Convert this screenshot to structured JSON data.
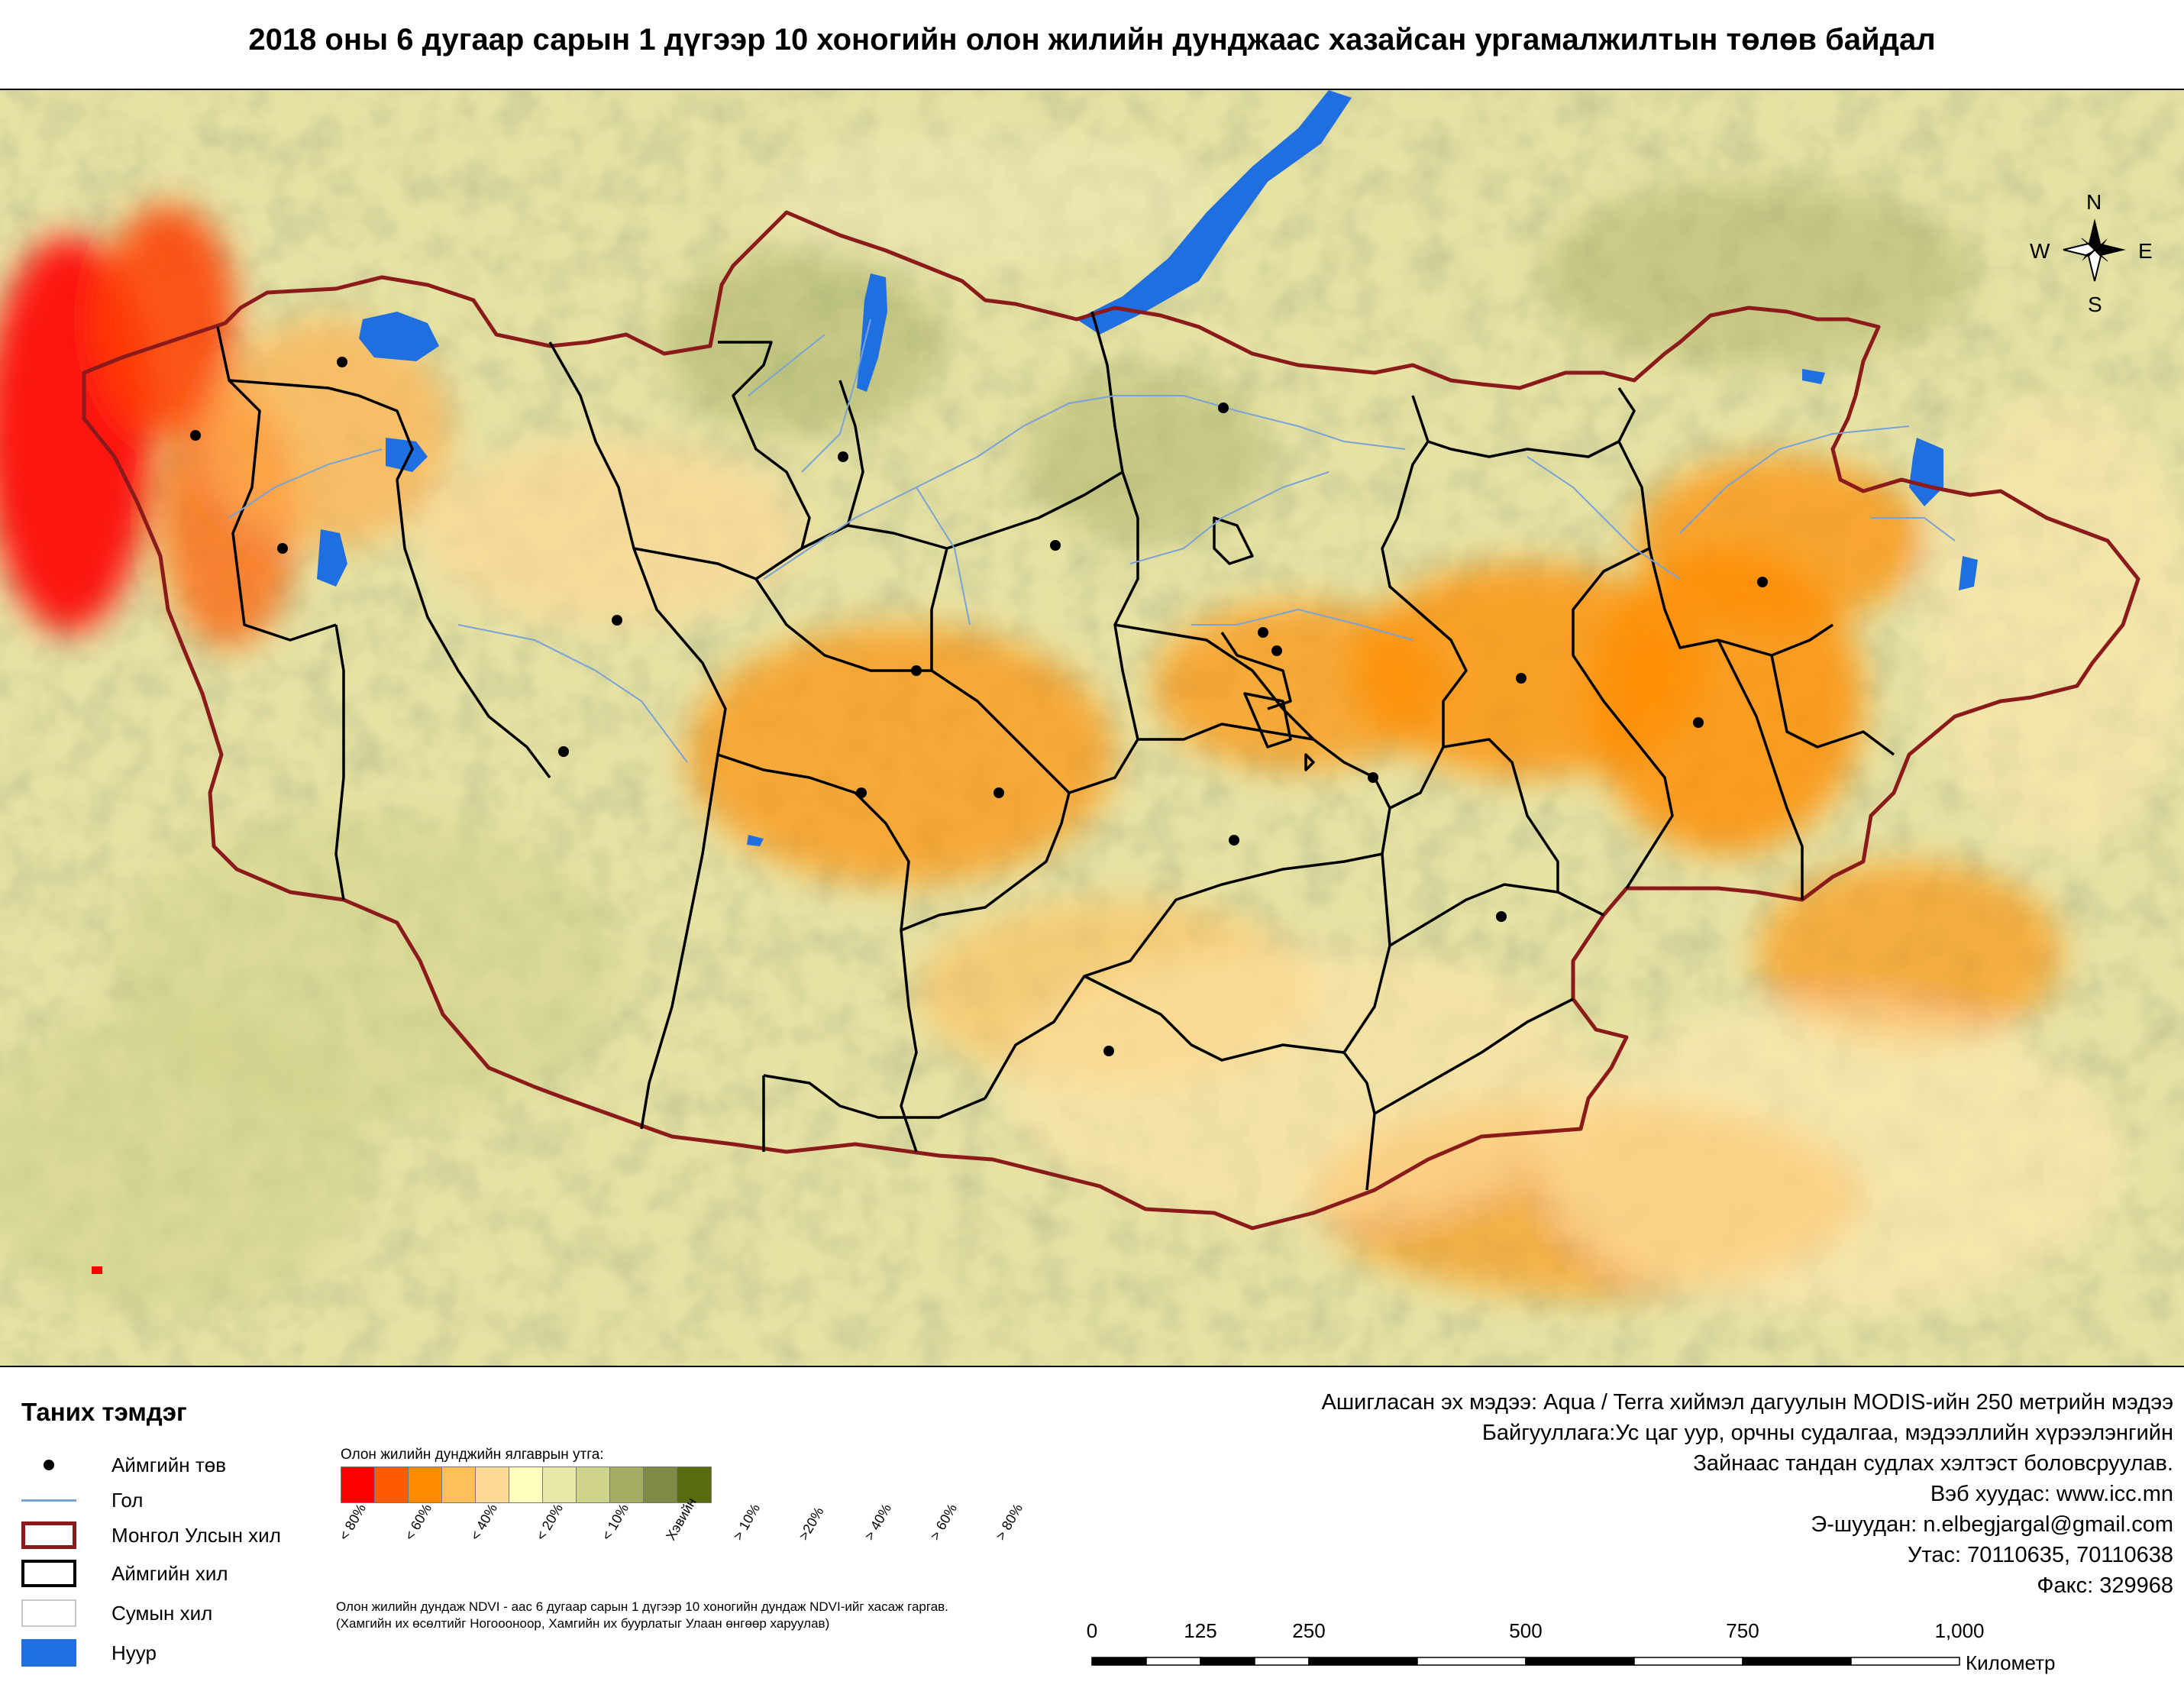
{
  "title": "2018 оны 6 дугаар сарын 1 дүгээр 10 хоногийн олон жилийн дунджаас хазайсан ургамалжилтын төлөв байдал",
  "compass": {
    "north": "N",
    "south": "S",
    "east": "E",
    "west": "W"
  },
  "legend": {
    "title": "Таних тэмдэг",
    "items": [
      {
        "label": "Аймгийн төв",
        "symbol": "dot"
      },
      {
        "label": "Гол",
        "symbol": "river"
      },
      {
        "label": "Монгол Улсын хил",
        "symbol": "country"
      },
      {
        "label": "Аймгийн хил",
        "symbol": "aimag"
      },
      {
        "label": "Сумын хил",
        "symbol": "sum"
      },
      {
        "label": "Нуур",
        "symbol": "lake"
      }
    ]
  },
  "color_scale": {
    "title": "Олон жилийн дунджийн ялгаврын утга:",
    "classes": [
      {
        "label": "< 80%",
        "color": "#ff0000"
      },
      {
        "label": "< 60%",
        "color": "#ff5a00"
      },
      {
        "label": "< 40%",
        "color": "#ff8c00"
      },
      {
        "label": "< 20%",
        "color": "#ffbf5a"
      },
      {
        "label": "< 10%",
        "color": "#ffd996"
      },
      {
        "label": "Хэвийн",
        "color": "#ffffbe"
      },
      {
        "label": "> 10%",
        "color": "#e8e8a8"
      },
      {
        "label": ">20%",
        "color": "#cfd28a"
      },
      {
        "label": "> 40%",
        "color": "#a6ad62"
      },
      {
        "label": "> 60%",
        "color": "#7f8a44"
      },
      {
        "label": "> 80%",
        "color": "#586b10"
      }
    ]
  },
  "notes": [
    "Олон жилийн дундаж NDVI - аас 6 дугаар сарын 1 дүгээр 10 хоногийн дундаж NDVI-ийг хасаж гаргав.",
    "(Хамгийн их өсөлтийг Ногоооноор,  Хамгийн их буурлатыг Улаан өнгөөр харуулав)"
  ],
  "info": [
    "Ашигласан эх мэдээ: Aqua / Terra хиймэл дагуулын MODIS-ийн 250 метрийн мэдээ",
    "Байгууллага:Ус цаг уур, орчны судалгаа, мэдээллийн хүрээлэнгийн",
    "Зайнаас тандан судлах хэлтэст боловсруулав.",
    "Вэб хуудас: www.icc.mn",
    "Э-шуудан: n.elbegjargal@gmail.com",
    "Утас: 70110635, 70110638",
    "Факс: 329968"
  ],
  "scalebar": {
    "labels": [
      "0",
      "125",
      "250",
      "500",
      "750",
      "1,000"
    ],
    "unit": "Километр"
  }
}
